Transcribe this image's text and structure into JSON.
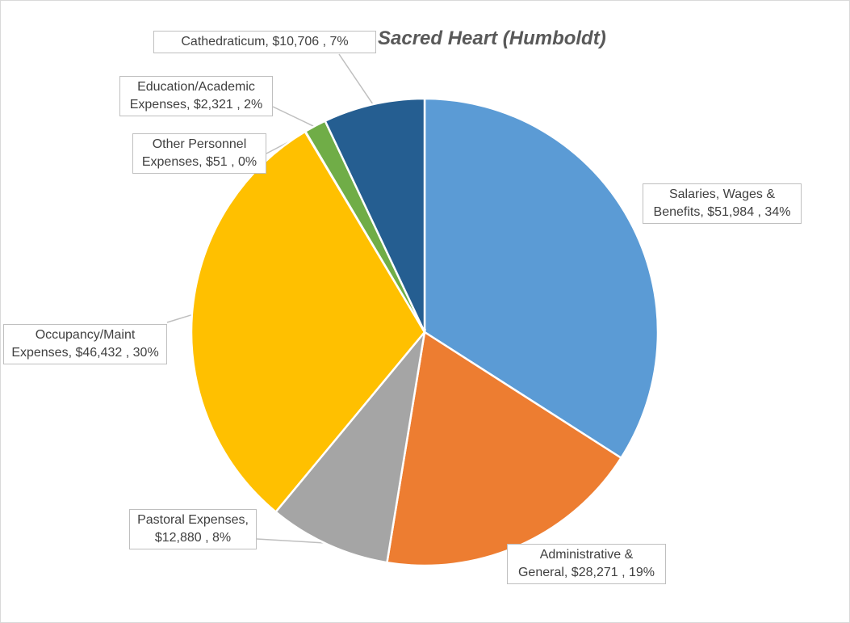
{
  "chart_data": {
    "type": "pie",
    "title": "Sacred Heart (Humboldt)",
    "slices": [
      {
        "label": "Salaries, Wages & Benefits",
        "value": 51984,
        "value_text": "$51,984",
        "percent_text": "34%",
        "color": "#5b9bd5"
      },
      {
        "label": "Administrative & General",
        "value": 28271,
        "value_text": "$28,271",
        "percent_text": "19%",
        "color": "#ed7d31"
      },
      {
        "label": "Pastoral Expenses",
        "value": 12880,
        "value_text": "$12,880",
        "percent_text": "8%",
        "color": "#a5a5a5"
      },
      {
        "label": "Occupancy/Maint Expenses",
        "value": 46432,
        "value_text": "$46,432",
        "percent_text": "30%",
        "color": "#ffc000"
      },
      {
        "label": "Other Personnel Expenses",
        "value": 51,
        "value_text": "$51",
        "percent_text": "0%",
        "color": "#4472c4"
      },
      {
        "label": "Education/Academic Expenses",
        "value": 2321,
        "value_text": "$2,321",
        "percent_text": "2%",
        "color": "#70ad47"
      },
      {
        "label": "Cathedraticum",
        "value": 10706,
        "value_text": "$10,706",
        "percent_text": "7%",
        "color": "#255e91"
      }
    ],
    "labels": [
      {
        "line1": "Salaries, Wages &",
        "line2": "Benefits,  $51,984 , 34%"
      },
      {
        "line1": "Administrative &",
        "line2": "General,  $28,271 , 19%"
      },
      {
        "line1": "Pastoral Expenses,",
        "line2": "$12,880 , 8%"
      },
      {
        "line1": "Occupancy/Maint",
        "line2": "Expenses,  $46,432 , 30%"
      },
      {
        "line1": "Other Personnel",
        "line2": "Expenses,  $51 , 0%"
      },
      {
        "line1": "Education/Academic",
        "line2": "Expenses,  $2,321 , 2%"
      },
      {
        "line1": "Cathedraticum,  $10,706 , 7%",
        "line2": ""
      }
    ]
  }
}
